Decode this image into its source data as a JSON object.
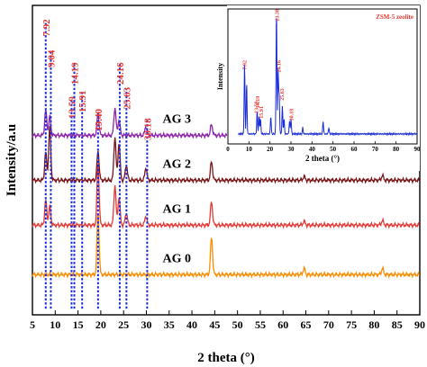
{
  "chart_data": {
    "type": "line",
    "title": "",
    "xlabel": "2 theta (°)",
    "ylabel": "Intensity/a.u",
    "xlim": [
      5,
      90
    ],
    "xticks": [
      "5",
      "10",
      "15",
      "20",
      "25",
      "30",
      "35",
      "40",
      "45",
      "50",
      "55",
      "60",
      "65",
      "70",
      "75",
      "80",
      "85",
      "90"
    ],
    "grid": false,
    "series": [
      {
        "name": "AG 3",
        "color": "#8e24aa",
        "baseline": 0.58,
        "peaks": [
          [
            7.92,
            0.08
          ],
          [
            8.8,
            0.06
          ],
          [
            19.4,
            0.07
          ],
          [
            23.1,
            0.09
          ],
          [
            24.0,
            0.05
          ],
          [
            29.9,
            0.03
          ],
          [
            44.3,
            0.035
          ],
          [
            64.6,
            0.01
          ],
          [
            81.8,
            0.012
          ]
        ]
      },
      {
        "name": "AG 2",
        "color": "#7a1418",
        "baseline": 0.435,
        "peaks": [
          [
            7.92,
            0.09
          ],
          [
            8.8,
            0.17
          ],
          [
            19.4,
            0.095
          ],
          [
            23.1,
            0.14
          ],
          [
            24.0,
            0.12
          ],
          [
            25.6,
            0.05
          ],
          [
            29.9,
            0.04
          ],
          [
            44.3,
            0.06
          ],
          [
            64.6,
            0.012
          ],
          [
            81.8,
            0.015
          ]
        ]
      },
      {
        "name": "AG 1",
        "color": "#e53935",
        "baseline": 0.29,
        "peaks": [
          [
            7.92,
            0.08
          ],
          [
            8.8,
            0.06
          ],
          [
            19.4,
            0.2
          ],
          [
            23.1,
            0.13
          ],
          [
            24.0,
            0.09
          ],
          [
            25.6,
            0.04
          ],
          [
            29.9,
            0.03
          ],
          [
            44.3,
            0.075
          ],
          [
            64.6,
            0.012
          ],
          [
            81.8,
            0.015
          ]
        ]
      },
      {
        "name": "AG 0",
        "color": "#fb8c00",
        "baseline": 0.13,
        "peaks": [
          [
            19.4,
            0.2
          ],
          [
            44.3,
            0.12
          ],
          [
            64.6,
            0.02
          ],
          [
            81.8,
            0.02
          ]
        ]
      }
    ],
    "reference_lines": [
      {
        "x": 7.92,
        "label": "7.92"
      },
      {
        "x": 9.04,
        "label": "9.04"
      },
      {
        "x": 13.59,
        "label": "13.59"
      },
      {
        "x": 14.19,
        "label": "14.19"
      },
      {
        "x": 15.91,
        "label": "15.91"
      },
      {
        "x": 19.4,
        "label": "19.40"
      },
      {
        "x": 24.16,
        "label": "24.16"
      },
      {
        "x": 25.63,
        "label": "25.63"
      },
      {
        "x": 30.18,
        "label": "30.18"
      }
    ],
    "inset": {
      "type": "line",
      "title": "ZSM-5 zeolite",
      "xlabel": "2 theta (°)",
      "ylabel": "Intensity",
      "xlim": [
        0,
        90
      ],
      "xticks": [
        "0",
        "10",
        "20",
        "30",
        "40",
        "50",
        "60",
        "70",
        "80",
        "90"
      ],
      "color": "#1a2dd4",
      "peaks": [
        [
          7.92,
          0.55
        ],
        [
          8.9,
          0.4
        ],
        [
          13.9,
          0.18
        ],
        [
          14.8,
          0.14
        ],
        [
          15.5,
          0.12
        ],
        [
          20.4,
          0.14
        ],
        [
          23.1,
          0.98
        ],
        [
          23.9,
          0.5
        ],
        [
          24.4,
          0.3
        ],
        [
          25.9,
          0.22
        ],
        [
          26.7,
          0.12
        ],
        [
          29.3,
          0.1
        ],
        [
          30.0,
          0.12
        ],
        [
          35.6,
          0.05
        ],
        [
          45.3,
          0.1
        ],
        [
          48.0,
          0.05
        ]
      ],
      "peak_labels": [
        {
          "x": 7.92,
          "label": "7.92"
        },
        {
          "x": 13.59,
          "label": "13.59"
        },
        {
          "x": 14.19,
          "label": "14.19"
        },
        {
          "x": 15.91,
          "label": "15.91"
        },
        {
          "x": 23.38,
          "label": "23.38"
        },
        {
          "x": 24.16,
          "label": "24.16"
        },
        {
          "x": 25.63,
          "label": "25.63"
        },
        {
          "x": 30.18,
          "label": "30.18"
        }
      ]
    }
  }
}
